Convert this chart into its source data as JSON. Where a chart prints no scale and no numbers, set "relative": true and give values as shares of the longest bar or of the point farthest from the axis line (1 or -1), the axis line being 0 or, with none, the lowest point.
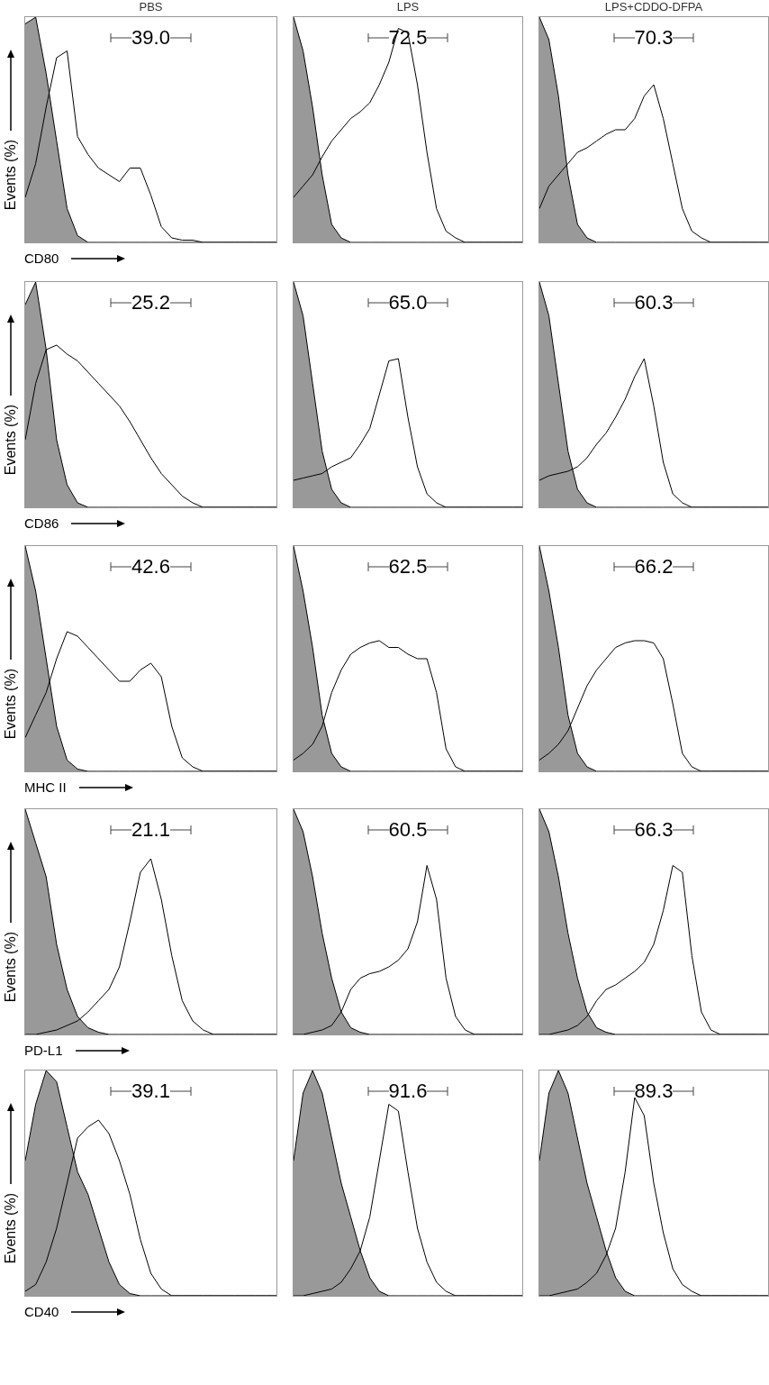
{
  "chart_data": [
    {
      "type": "area",
      "title": "PBS",
      "xlabel": "CD80",
      "ylabel": "Events (%)",
      "relative": true,
      "tick_labels": false,
      "annotations": [
        "39.0"
      ],
      "categories": [
        null,
        null,
        null,
        null,
        null,
        null,
        null,
        null,
        null,
        null,
        null,
        null,
        null,
        null,
        null,
        null,
        null,
        null,
        null,
        null,
        null,
        null,
        null,
        null,
        null
      ],
      "series": [
        {
          "type": "area",
          "color": "#999999",
          "values": [
            0.97,
            1.0,
            0.75,
            0.45,
            0.15,
            0.03,
            0,
            0,
            0,
            0,
            0,
            0,
            0,
            0,
            0,
            0,
            0,
            0,
            0,
            0,
            0,
            0,
            0,
            0,
            0
          ]
        },
        {
          "type": "line",
          "color": "#000000",
          "values": [
            0.2,
            0.35,
            0.6,
            0.82,
            0.85,
            0.47,
            0.39,
            0.33,
            0.3,
            0.27,
            0.33,
            0.33,
            0.21,
            0.07,
            0.02,
            0.01,
            0.01,
            0,
            0,
            0,
            0,
            0,
            0,
            0,
            0
          ]
        }
      ]
    },
    {
      "type": "area",
      "title": "LPS",
      "relative": true,
      "tick_labels": false,
      "annotations": [
        "72.5"
      ],
      "categories": [
        null,
        null,
        null,
        null,
        null,
        null,
        null,
        null,
        null,
        null,
        null,
        null,
        null,
        null,
        null,
        null,
        null,
        null,
        null,
        null,
        null,
        null,
        null,
        null,
        null
      ],
      "series": [
        {
          "type": "area",
          "color": "#999999",
          "values": [
            1.0,
            0.85,
            0.6,
            0.3,
            0.08,
            0.02,
            0,
            0,
            0,
            0,
            0,
            0,
            0,
            0,
            0,
            0,
            0,
            0,
            0,
            0,
            0,
            0,
            0,
            0,
            0
          ]
        },
        {
          "type": "line",
          "color": "#000000",
          "values": [
            0.2,
            0.25,
            0.3,
            0.38,
            0.45,
            0.5,
            0.55,
            0.58,
            0.62,
            0.7,
            0.8,
            0.95,
            0.93,
            0.7,
            0.4,
            0.15,
            0.05,
            0.02,
            0,
            0,
            0,
            0,
            0,
            0,
            0
          ]
        }
      ]
    },
    {
      "type": "area",
      "title": "LPS+CDDO-DFPA",
      "relative": true,
      "tick_labels": false,
      "annotations": [
        "70.3"
      ],
      "categories": [
        null,
        null,
        null,
        null,
        null,
        null,
        null,
        null,
        null,
        null,
        null,
        null,
        null,
        null,
        null,
        null,
        null,
        null,
        null,
        null,
        null,
        null,
        null,
        null,
        null
      ],
      "series": [
        {
          "type": "area",
          "color": "#999999",
          "values": [
            1.0,
            0.9,
            0.65,
            0.3,
            0.08,
            0.02,
            0,
            0,
            0,
            0,
            0,
            0,
            0,
            0,
            0,
            0,
            0,
            0,
            0,
            0,
            0,
            0,
            0,
            0,
            0
          ]
        },
        {
          "type": "line",
          "color": "#000000",
          "values": [
            0.15,
            0.25,
            0.3,
            0.35,
            0.4,
            0.42,
            0.45,
            0.48,
            0.5,
            0.5,
            0.55,
            0.65,
            0.7,
            0.55,
            0.35,
            0.15,
            0.05,
            0.02,
            0,
            0,
            0,
            0,
            0,
            0,
            0
          ]
        }
      ]
    },
    {
      "type": "area",
      "xlabel": "CD86",
      "ylabel": "Events (%)",
      "relative": true,
      "tick_labels": false,
      "annotations": [
        "25.2"
      ],
      "categories": [
        null,
        null,
        null,
        null,
        null,
        null,
        null,
        null,
        null,
        null,
        null,
        null,
        null,
        null,
        null,
        null,
        null,
        null,
        null,
        null,
        null,
        null,
        null,
        null,
        null
      ],
      "series": [
        {
          "type": "area",
          "color": "#999999",
          "values": [
            0.9,
            1.0,
            0.7,
            0.3,
            0.1,
            0.02,
            0,
            0,
            0,
            0,
            0,
            0,
            0,
            0,
            0,
            0,
            0,
            0,
            0,
            0,
            0,
            0,
            0,
            0,
            0
          ]
        },
        {
          "type": "line",
          "color": "#000000",
          "values": [
            0.3,
            0.55,
            0.7,
            0.72,
            0.68,
            0.65,
            0.6,
            0.55,
            0.5,
            0.45,
            0.38,
            0.3,
            0.22,
            0.15,
            0.1,
            0.05,
            0.02,
            0,
            0,
            0,
            0,
            0,
            0,
            0,
            0
          ]
        }
      ]
    },
    {
      "type": "area",
      "relative": true,
      "tick_labels": false,
      "annotations": [
        "65.0"
      ],
      "categories": [
        null,
        null,
        null,
        null,
        null,
        null,
        null,
        null,
        null,
        null,
        null,
        null,
        null,
        null,
        null,
        null,
        null,
        null,
        null,
        null,
        null,
        null,
        null,
        null,
        null
      ],
      "series": [
        {
          "type": "area",
          "color": "#999999",
          "values": [
            1.0,
            0.85,
            0.55,
            0.25,
            0.08,
            0.02,
            0,
            0,
            0,
            0,
            0,
            0,
            0,
            0,
            0,
            0,
            0,
            0,
            0,
            0,
            0,
            0,
            0,
            0,
            0
          ]
        },
        {
          "type": "line",
          "color": "#000000",
          "values": [
            0.12,
            0.13,
            0.14,
            0.15,
            0.18,
            0.2,
            0.22,
            0.28,
            0.35,
            0.5,
            0.65,
            0.66,
            0.4,
            0.18,
            0.06,
            0.02,
            0,
            0,
            0,
            0,
            0,
            0,
            0,
            0,
            0
          ]
        }
      ]
    },
    {
      "type": "area",
      "relative": true,
      "tick_labels": false,
      "annotations": [
        "60.3"
      ],
      "categories": [
        null,
        null,
        null,
        null,
        null,
        null,
        null,
        null,
        null,
        null,
        null,
        null,
        null,
        null,
        null,
        null,
        null,
        null,
        null,
        null,
        null,
        null,
        null,
        null,
        null
      ],
      "series": [
        {
          "type": "area",
          "color": "#999999",
          "values": [
            1.0,
            0.85,
            0.55,
            0.25,
            0.08,
            0.02,
            0,
            0,
            0,
            0,
            0,
            0,
            0,
            0,
            0,
            0,
            0,
            0,
            0,
            0,
            0,
            0,
            0,
            0,
            0
          ]
        },
        {
          "type": "line",
          "color": "#000000",
          "values": [
            0.12,
            0.14,
            0.15,
            0.16,
            0.18,
            0.22,
            0.28,
            0.33,
            0.4,
            0.48,
            0.58,
            0.66,
            0.45,
            0.2,
            0.06,
            0.02,
            0,
            0,
            0,
            0,
            0,
            0,
            0,
            0,
            0
          ]
        }
      ]
    },
    {
      "type": "area",
      "xlabel": "MHC II",
      "ylabel": "Events (%)",
      "relative": true,
      "tick_labels": false,
      "annotations": [
        "42.6"
      ],
      "categories": [
        null,
        null,
        null,
        null,
        null,
        null,
        null,
        null,
        null,
        null,
        null,
        null,
        null,
        null,
        null,
        null,
        null,
        null,
        null,
        null,
        null,
        null,
        null,
        null,
        null
      ],
      "series": [
        {
          "type": "area",
          "color": "#999999",
          "values": [
            1.0,
            0.8,
            0.5,
            0.2,
            0.05,
            0.01,
            0,
            0,
            0,
            0,
            0,
            0,
            0,
            0,
            0,
            0,
            0,
            0,
            0,
            0,
            0,
            0,
            0,
            0,
            0
          ]
        },
        {
          "type": "line",
          "color": "#000000",
          "values": [
            0.15,
            0.25,
            0.35,
            0.5,
            0.62,
            0.6,
            0.55,
            0.5,
            0.45,
            0.4,
            0.4,
            0.45,
            0.48,
            0.42,
            0.2,
            0.06,
            0.02,
            0,
            0,
            0,
            0,
            0,
            0,
            0,
            0
          ]
        }
      ]
    },
    {
      "type": "area",
      "relative": true,
      "tick_labels": false,
      "annotations": [
        "62.5"
      ],
      "categories": [
        null,
        null,
        null,
        null,
        null,
        null,
        null,
        null,
        null,
        null,
        null,
        null,
        null,
        null,
        null,
        null,
        null,
        null,
        null,
        null,
        null,
        null,
        null,
        null,
        null
      ],
      "series": [
        {
          "type": "area",
          "color": "#999999",
          "values": [
            1.0,
            0.8,
            0.55,
            0.25,
            0.08,
            0.02,
            0,
            0,
            0,
            0,
            0,
            0,
            0,
            0,
            0,
            0,
            0,
            0,
            0,
            0,
            0,
            0,
            0,
            0,
            0
          ]
        },
        {
          "type": "line",
          "color": "#000000",
          "values": [
            0.05,
            0.08,
            0.12,
            0.2,
            0.35,
            0.45,
            0.52,
            0.55,
            0.57,
            0.58,
            0.55,
            0.55,
            0.52,
            0.5,
            0.5,
            0.35,
            0.1,
            0.02,
            0,
            0,
            0,
            0,
            0,
            0,
            0
          ]
        }
      ]
    },
    {
      "type": "area",
      "relative": true,
      "tick_labels": false,
      "annotations": [
        "66.2"
      ],
      "categories": [
        null,
        null,
        null,
        null,
        null,
        null,
        null,
        null,
        null,
        null,
        null,
        null,
        null,
        null,
        null,
        null,
        null,
        null,
        null,
        null,
        null,
        null,
        null,
        null,
        null
      ],
      "series": [
        {
          "type": "area",
          "color": "#999999",
          "values": [
            1.0,
            0.8,
            0.55,
            0.25,
            0.08,
            0.02,
            0,
            0,
            0,
            0,
            0,
            0,
            0,
            0,
            0,
            0,
            0,
            0,
            0,
            0,
            0,
            0,
            0,
            0,
            0
          ]
        },
        {
          "type": "line",
          "color": "#000000",
          "values": [
            0.05,
            0.08,
            0.12,
            0.18,
            0.28,
            0.38,
            0.45,
            0.5,
            0.55,
            0.57,
            0.58,
            0.58,
            0.57,
            0.5,
            0.3,
            0.08,
            0.02,
            0,
            0,
            0,
            0,
            0,
            0,
            0,
            0
          ]
        }
      ]
    },
    {
      "type": "area",
      "xlabel": "PD-L1",
      "ylabel": "Events (%)",
      "relative": true,
      "tick_labels": false,
      "annotations": [
        "21.1"
      ],
      "categories": [
        null,
        null,
        null,
        null,
        null,
        null,
        null,
        null,
        null,
        null,
        null,
        null,
        null,
        null,
        null,
        null,
        null,
        null,
        null,
        null,
        null,
        null,
        null,
        null,
        null
      ],
      "series": [
        {
          "type": "area",
          "color": "#999999",
          "values": [
            1.0,
            0.85,
            0.7,
            0.4,
            0.2,
            0.08,
            0.03,
            0.01,
            0,
            0,
            0,
            0,
            0,
            0,
            0,
            0,
            0,
            0,
            0,
            0,
            0,
            0,
            0,
            0,
            0
          ]
        },
        {
          "type": "line",
          "color": "#000000",
          "values": [
            0,
            0,
            0.01,
            0.02,
            0.04,
            0.06,
            0.1,
            0.15,
            0.2,
            0.3,
            0.5,
            0.72,
            0.78,
            0.6,
            0.35,
            0.15,
            0.06,
            0.02,
            0,
            0,
            0,
            0,
            0,
            0,
            0
          ]
        }
      ]
    },
    {
      "type": "area",
      "relative": true,
      "tick_labels": false,
      "annotations": [
        "60.5"
      ],
      "categories": [
        null,
        null,
        null,
        null,
        null,
        null,
        null,
        null,
        null,
        null,
        null,
        null,
        null,
        null,
        null,
        null,
        null,
        null,
        null,
        null,
        null,
        null,
        null,
        null,
        null
      ],
      "series": [
        {
          "type": "area",
          "color": "#999999",
          "values": [
            1.0,
            0.9,
            0.7,
            0.45,
            0.25,
            0.1,
            0.03,
            0.01,
            0,
            0,
            0,
            0,
            0,
            0,
            0,
            0,
            0,
            0,
            0,
            0,
            0,
            0,
            0,
            0,
            0
          ]
        },
        {
          "type": "line",
          "color": "#000000",
          "values": [
            0,
            0,
            0.01,
            0.02,
            0.04,
            0.1,
            0.2,
            0.25,
            0.27,
            0.28,
            0.3,
            0.33,
            0.38,
            0.5,
            0.75,
            0.6,
            0.25,
            0.08,
            0.02,
            0,
            0,
            0,
            0,
            0,
            0
          ]
        }
      ]
    },
    {
      "type": "area",
      "relative": true,
      "tick_labels": false,
      "annotations": [
        "66.3"
      ],
      "categories": [
        null,
        null,
        null,
        null,
        null,
        null,
        null,
        null,
        null,
        null,
        null,
        null,
        null,
        null,
        null,
        null,
        null,
        null,
        null,
        null,
        null,
        null,
        null,
        null,
        null
      ],
      "series": [
        {
          "type": "area",
          "color": "#999999",
          "values": [
            1.0,
            0.9,
            0.7,
            0.45,
            0.25,
            0.1,
            0.03,
            0.01,
            0,
            0,
            0,
            0,
            0,
            0,
            0,
            0,
            0,
            0,
            0,
            0,
            0,
            0,
            0,
            0,
            0
          ]
        },
        {
          "type": "line",
          "color": "#000000",
          "values": [
            0,
            0,
            0.01,
            0.02,
            0.04,
            0.08,
            0.15,
            0.2,
            0.22,
            0.25,
            0.28,
            0.32,
            0.4,
            0.55,
            0.75,
            0.72,
            0.35,
            0.1,
            0.02,
            0,
            0,
            0,
            0,
            0,
            0
          ]
        }
      ]
    },
    {
      "type": "area",
      "xlabel": "CD40",
      "ylabel": "Events (%)",
      "relative": true,
      "tick_labels": false,
      "annotations": [
        "39.1"
      ],
      "categories": [
        null,
        null,
        null,
        null,
        null,
        null,
        null,
        null,
        null,
        null,
        null,
        null,
        null,
        null,
        null,
        null,
        null,
        null,
        null,
        null,
        null,
        null,
        null,
        null,
        null
      ],
      "series": [
        {
          "type": "area",
          "color": "#999999",
          "values": [
            0.6,
            0.85,
            1.0,
            0.95,
            0.75,
            0.55,
            0.45,
            0.3,
            0.15,
            0.05,
            0.01,
            0,
            0,
            0,
            0,
            0,
            0,
            0,
            0,
            0,
            0,
            0,
            0,
            0,
            0
          ]
        },
        {
          "type": "line",
          "color": "#000000",
          "values": [
            0.02,
            0.05,
            0.15,
            0.3,
            0.5,
            0.7,
            0.75,
            0.78,
            0.72,
            0.6,
            0.45,
            0.25,
            0.1,
            0.03,
            0,
            0,
            0,
            0,
            0,
            0,
            0,
            0,
            0,
            0,
            0
          ]
        }
      ]
    },
    {
      "type": "area",
      "relative": true,
      "tick_labels": false,
      "annotations": [
        "91.6"
      ],
      "categories": [
        null,
        null,
        null,
        null,
        null,
        null,
        null,
        null,
        null,
        null,
        null,
        null,
        null,
        null,
        null,
        null,
        null,
        null,
        null,
        null,
        null,
        null,
        null,
        null,
        null
      ],
      "series": [
        {
          "type": "area",
          "color": "#999999",
          "values": [
            0.6,
            0.9,
            1.0,
            0.9,
            0.7,
            0.5,
            0.35,
            0.2,
            0.08,
            0.02,
            0,
            0,
            0,
            0,
            0,
            0,
            0,
            0,
            0,
            0,
            0,
            0,
            0,
            0,
            0
          ]
        },
        {
          "type": "line",
          "color": "#000000",
          "values": [
            0,
            0,
            0.01,
            0.02,
            0.03,
            0.06,
            0.12,
            0.2,
            0.35,
            0.6,
            0.85,
            0.82,
            0.55,
            0.3,
            0.15,
            0.06,
            0.02,
            0,
            0,
            0,
            0,
            0,
            0,
            0,
            0
          ]
        }
      ]
    },
    {
      "type": "area",
      "relative": true,
      "tick_labels": false,
      "annotations": [
        "89.3"
      ],
      "categories": [
        null,
        null,
        null,
        null,
        null,
        null,
        null,
        null,
        null,
        null,
        null,
        null,
        null,
        null,
        null,
        null,
        null,
        null,
        null,
        null,
        null,
        null,
        null,
        null,
        null
      ],
      "series": [
        {
          "type": "area",
          "color": "#999999",
          "values": [
            0.6,
            0.9,
            1.0,
            0.9,
            0.7,
            0.5,
            0.35,
            0.2,
            0.08,
            0.02,
            0,
            0,
            0,
            0,
            0,
            0,
            0,
            0,
            0,
            0,
            0,
            0,
            0,
            0,
            0
          ]
        },
        {
          "type": "line",
          "color": "#000000",
          "values": [
            0,
            0,
            0.01,
            0.02,
            0.03,
            0.06,
            0.1,
            0.18,
            0.3,
            0.55,
            0.88,
            0.8,
            0.5,
            0.28,
            0.12,
            0.05,
            0.02,
            0,
            0,
            0,
            0,
            0,
            0,
            0,
            0
          ]
        }
      ]
    }
  ]
}
